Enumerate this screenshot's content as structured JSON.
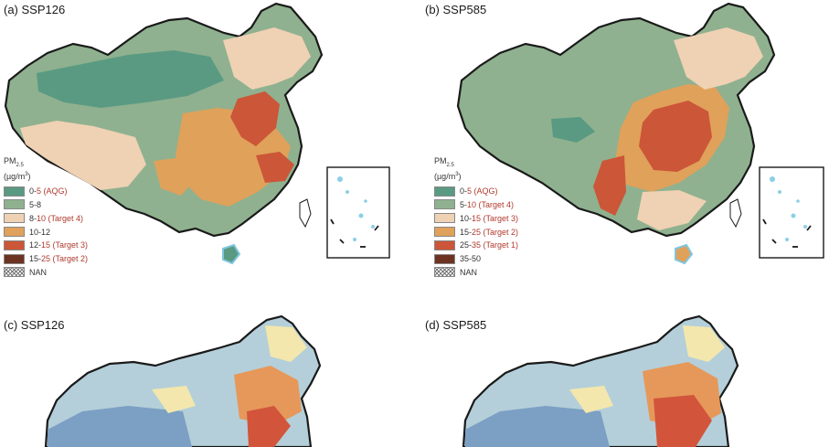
{
  "panels": [
    {
      "id": "a",
      "title": "(a) SSP126",
      "legend": {
        "title": "PM",
        "title_sub": "2.5",
        "unit_prefix": "(µg/m",
        "unit_sup": "3",
        "unit_suffix": ")",
        "items": [
          {
            "range": "0-",
            "target": "5 (AQG)",
            "color": "#5a9a82"
          },
          {
            "range": "5-8",
            "target": "",
            "color": "#8fb18f"
          },
          {
            "range": "8-",
            "target": "10 (Target 4)",
            "color": "#efd1b4"
          },
          {
            "range": "10-12",
            "target": "",
            "color": "#e0a15a"
          },
          {
            "range": "12-",
            "target": "15 (Target 3)",
            "color": "#cc5638"
          },
          {
            "range": "15-",
            "target": "25 (Target 2)",
            "color": "#6d3322"
          },
          {
            "range": "NAN",
            "target": "",
            "color": "hatch"
          }
        ]
      }
    },
    {
      "id": "b",
      "title": "(b) SSP585",
      "legend": {
        "title": "PM",
        "title_sub": "2.5",
        "unit_prefix": "(µg/m",
        "unit_sup": "3",
        "unit_suffix": ")",
        "items": [
          {
            "range": "0-",
            "target": "5 (AQG)",
            "color": "#5a9a82"
          },
          {
            "range": "5-",
            "target": "10 (Target 4)",
            "color": "#8fb18f"
          },
          {
            "range": "10-",
            "target": "15 (Target 3)",
            "color": "#efd1b4"
          },
          {
            "range": "15-",
            "target": "25 (Target 2)",
            "color": "#e0a15a"
          },
          {
            "range": "25-",
            "target": "35 (Target 1)",
            "color": "#cc5638"
          },
          {
            "range": "35-50",
            "target": "",
            "color": "#6d3322"
          },
          {
            "range": "NAN",
            "target": "",
            "color": "hatch"
          }
        ]
      }
    },
    {
      "id": "c",
      "title": "(c) SSP126"
    },
    {
      "id": "d",
      "title": "(d) SSP585"
    }
  ],
  "colors": {
    "border": "#1a1a1a",
    "coast": "#7fc6e0",
    "island": "#8ccfe6",
    "target_text": "#b03a2e",
    "lower_blue": "#7c9fc4",
    "lower_lightblue": "#b4cfd9",
    "lower_cream": "#f3e7ad",
    "lower_orange": "#e6985a",
    "lower_red": "#d2553b"
  }
}
